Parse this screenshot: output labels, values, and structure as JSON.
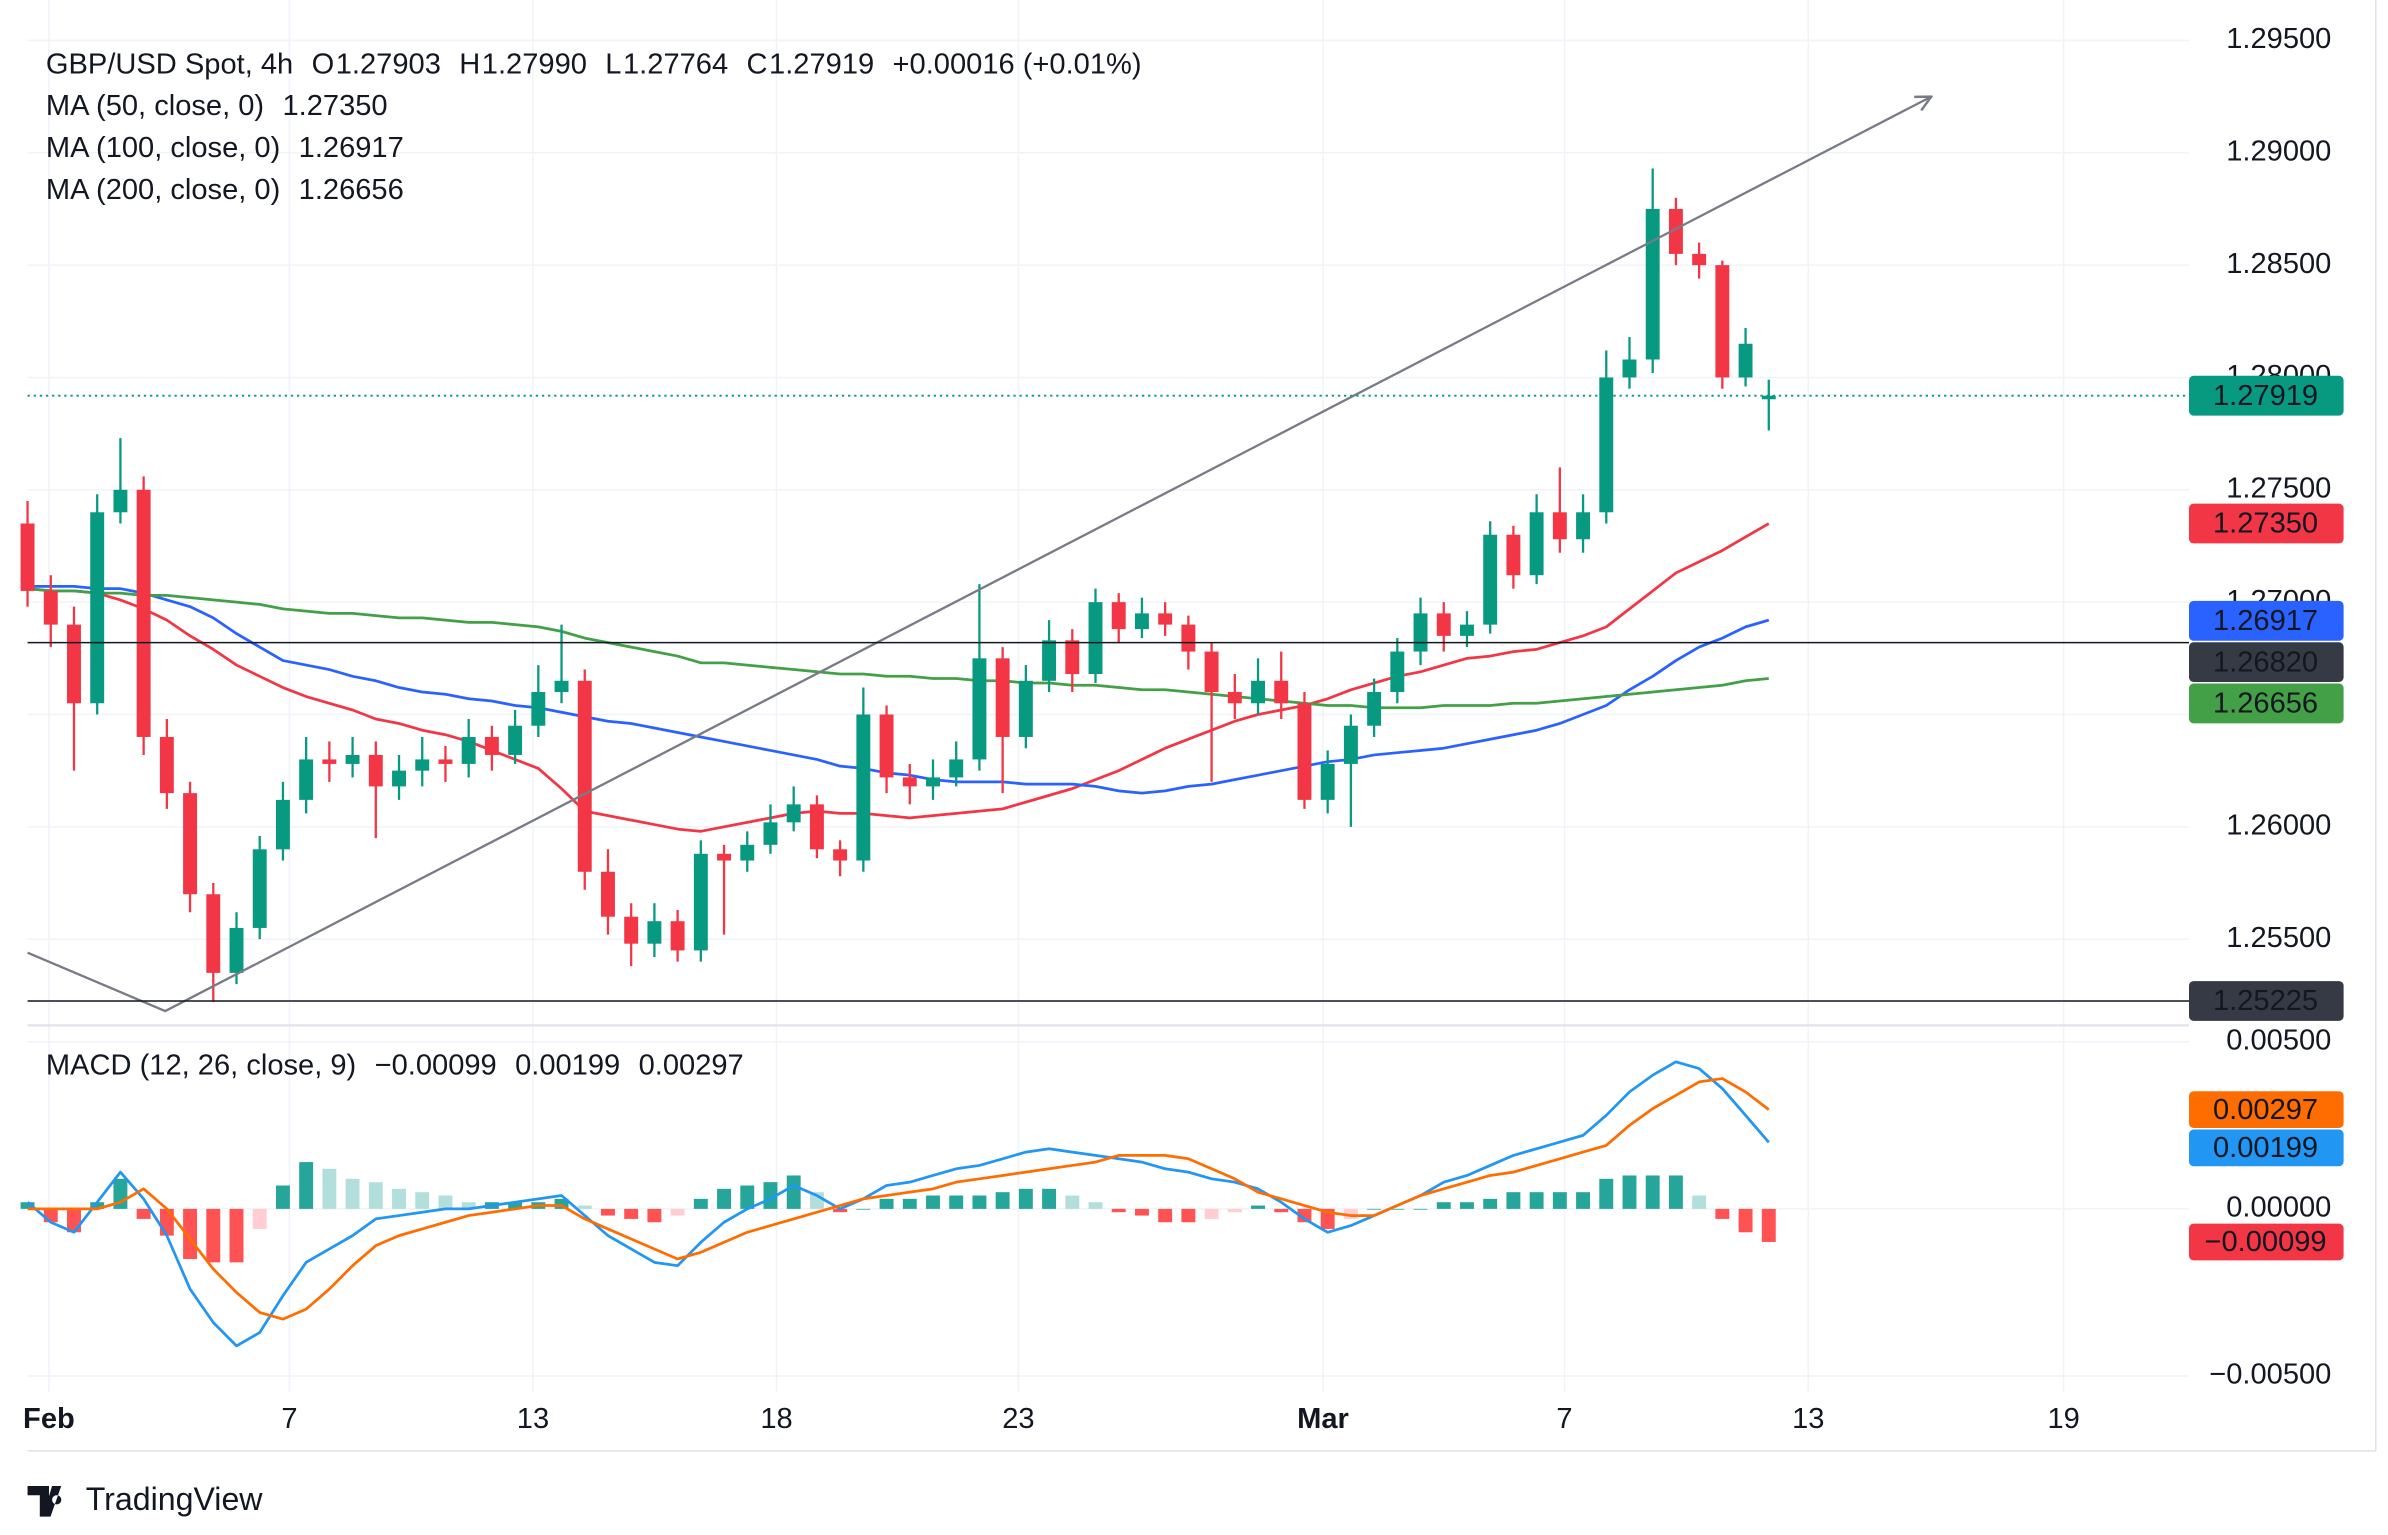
{
  "header": {
    "title": "GBP/USD Spot, 4h",
    "color": "#089981",
    "ohlc": [
      {
        "key": "O",
        "value": "1.27903"
      },
      {
        "key": "H",
        "value": "1.27990"
      },
      {
        "key": "L",
        "value": "1.27764"
      },
      {
        "key": "C",
        "value": "1.27919"
      }
    ],
    "change": "+0.00016 (+0.01%)"
  },
  "brand": "TradingView",
  "chart_data": [
    {
      "type": "candlestick",
      "up_color": "#089981",
      "down_color": "#f23645",
      "grid": true,
      "open": [
        1.2735,
        1.2705,
        1.269,
        1.2655,
        1.274,
        1.275,
        1.264,
        1.2615,
        1.257,
        1.2535,
        1.2555,
        1.259,
        1.2612,
        1.263,
        1.2628,
        1.2632,
        1.2618,
        1.2625,
        1.263,
        1.2628,
        1.264,
        1.2632,
        1.2645,
        1.266,
        1.2665,
        1.258,
        1.256,
        1.2548,
        1.2558,
        1.2545,
        1.2588,
        1.2585,
        1.2592,
        1.2602,
        1.261,
        1.259,
        1.2585,
        1.265,
        1.2622,
        1.2618,
        1.2622,
        1.263,
        1.2675,
        1.264,
        1.2665,
        1.2683,
        1.2668,
        1.27,
        1.2688,
        1.2695,
        1.269,
        1.2678,
        1.266,
        1.2655,
        1.2665,
        1.2655,
        1.2612,
        1.2628,
        1.2645,
        1.266,
        1.2678,
        1.2695,
        1.2685,
        1.269,
        1.273,
        1.2712,
        1.274,
        1.2728,
        1.274,
        1.28,
        1.2808,
        1.2875,
        1.2855,
        1.285,
        1.28,
        1.27903
      ],
      "high": [
        1.2745,
        1.2712,
        1.2698,
        1.2748,
        1.2773,
        1.2756,
        1.2648,
        1.262,
        1.2575,
        1.2562,
        1.2596,
        1.262,
        1.264,
        1.2638,
        1.264,
        1.2638,
        1.2632,
        1.264,
        1.2636,
        1.2648,
        1.2645,
        1.2652,
        1.2672,
        1.269,
        1.267,
        1.259,
        1.2566,
        1.2566,
        1.2563,
        1.2594,
        1.2592,
        1.2598,
        1.261,
        1.2618,
        1.2614,
        1.2594,
        1.2662,
        1.2654,
        1.2628,
        1.263,
        1.2638,
        1.2708,
        1.268,
        1.2672,
        1.2692,
        1.2688,
        1.2706,
        1.2704,
        1.2702,
        1.27,
        1.2694,
        1.2682,
        1.2668,
        1.2675,
        1.2678,
        1.266,
        1.2634,
        1.265,
        1.2666,
        1.2684,
        1.2702,
        1.27,
        1.2696,
        1.2736,
        1.2734,
        1.2748,
        1.276,
        1.2748,
        1.2812,
        1.2818,
        1.2893,
        1.288,
        1.286,
        1.2852,
        1.2822,
        1.2799
      ],
      "low": [
        1.2698,
        1.268,
        1.2625,
        1.265,
        1.2735,
        1.2632,
        1.2608,
        1.2562,
        1.2522,
        1.253,
        1.255,
        1.2585,
        1.2606,
        1.262,
        1.2622,
        1.2595,
        1.2612,
        1.2618,
        1.262,
        1.2622,
        1.2625,
        1.2628,
        1.264,
        1.2655,
        1.2572,
        1.2552,
        1.2538,
        1.2542,
        1.254,
        1.254,
        1.2552,
        1.258,
        1.2588,
        1.2598,
        1.2586,
        1.2578,
        1.258,
        1.2615,
        1.261,
        1.2612,
        1.2618,
        1.2625,
        1.2615,
        1.2635,
        1.266,
        1.266,
        1.2664,
        1.2682,
        1.2684,
        1.2685,
        1.267,
        1.262,
        1.2648,
        1.265,
        1.2648,
        1.2608,
        1.2606,
        1.26,
        1.264,
        1.2655,
        1.2672,
        1.2678,
        1.268,
        1.2686,
        1.2706,
        1.2708,
        1.2722,
        1.2722,
        1.2735,
        1.2795,
        1.2802,
        1.285,
        1.2844,
        1.2795,
        1.2796,
        1.27764
      ],
      "close": [
        1.2705,
        1.269,
        1.2655,
        1.274,
        1.275,
        1.264,
        1.2615,
        1.257,
        1.2535,
        1.2555,
        1.259,
        1.2612,
        1.263,
        1.2628,
        1.2632,
        1.2618,
        1.2625,
        1.263,
        1.2628,
        1.264,
        1.2632,
        1.2645,
        1.266,
        1.2665,
        1.258,
        1.256,
        1.2548,
        1.2558,
        1.2545,
        1.2588,
        1.2585,
        1.2592,
        1.2602,
        1.261,
        1.259,
        1.2585,
        1.265,
        1.2622,
        1.2618,
        1.2622,
        1.263,
        1.2675,
        1.264,
        1.2665,
        1.2683,
        1.2668,
        1.27,
        1.2688,
        1.2695,
        1.269,
        1.2678,
        1.266,
        1.2655,
        1.2665,
        1.2655,
        1.2612,
        1.2628,
        1.2645,
        1.266,
        1.2678,
        1.2695,
        1.2685,
        1.269,
        1.273,
        1.2712,
        1.274,
        1.2728,
        1.274,
        1.28,
        1.2808,
        1.2875,
        1.2855,
        1.285,
        1.28,
        1.2815,
        1.27919
      ],
      "series": [
        {
          "name": "MA (50, close, 0)",
          "value_label": "1.27350",
          "color": "#f23645",
          "values": [
            1.2706,
            1.2705,
            1.2705,
            1.2704,
            1.2701,
            1.2697,
            1.2692,
            1.2685,
            1.2679,
            1.2672,
            1.2667,
            1.2662,
            1.2658,
            1.2655,
            1.2652,
            1.2648,
            1.2646,
            1.2643,
            1.2641,
            1.2638,
            1.2634,
            1.263,
            1.2626,
            1.2617,
            1.2607,
            1.2605,
            1.2603,
            1.2601,
            1.2599,
            1.2598,
            1.26,
            1.2602,
            1.2604,
            1.2606,
            1.2607,
            1.2606,
            1.2606,
            1.2605,
            1.2604,
            1.2605,
            1.2606,
            1.2607,
            1.2608,
            1.2611,
            1.2614,
            1.2617,
            1.2621,
            1.2625,
            1.263,
            1.2635,
            1.2639,
            1.2643,
            1.2647,
            1.265,
            1.2652,
            1.2654,
            1.2657,
            1.2661,
            1.2664,
            1.2667,
            1.2669,
            1.2672,
            1.2675,
            1.2676,
            1.2678,
            1.2679,
            1.2682,
            1.2685,
            1.2689,
            1.2697,
            1.2705,
            1.2713,
            1.2718,
            1.2723,
            1.2729,
            1.2735
          ]
        },
        {
          "name": "MA (100, close, 0)",
          "value_label": "1.26917",
          "color": "#2962ff",
          "values": [
            1.2707,
            1.2707,
            1.2707,
            1.2706,
            1.2706,
            1.2704,
            1.2701,
            1.2698,
            1.2693,
            1.2686,
            1.268,
            1.2674,
            1.2672,
            1.267,
            1.2667,
            1.2665,
            1.2662,
            1.266,
            1.2659,
            1.2657,
            1.2656,
            1.2654,
            1.2653,
            1.2651,
            1.2649,
            1.2647,
            1.2646,
            1.2644,
            1.2642,
            1.264,
            1.2638,
            1.2636,
            1.2634,
            1.2632,
            1.263,
            1.2627,
            1.2626,
            1.2624,
            1.2623,
            1.2621,
            1.262,
            1.262,
            1.262,
            1.2619,
            1.2619,
            1.2619,
            1.2618,
            1.2616,
            1.2615,
            1.2616,
            1.2618,
            1.2619,
            1.2621,
            1.2623,
            1.2625,
            1.2627,
            1.2629,
            1.263,
            1.2632,
            1.2633,
            1.2634,
            1.2635,
            1.2637,
            1.2639,
            1.2641,
            1.2643,
            1.2646,
            1.265,
            1.2654,
            1.2661,
            1.2667,
            1.2674,
            1.268,
            1.2684,
            1.2689,
            1.2692
          ]
        },
        {
          "name": "MA (200, close, 0)",
          "value_label": "1.26656",
          "color": "#43a047",
          "values": [
            1.2706,
            1.2705,
            1.2705,
            1.2704,
            1.2704,
            1.2703,
            1.2703,
            1.2702,
            1.2701,
            1.27,
            1.2699,
            1.2697,
            1.2696,
            1.2695,
            1.2695,
            1.2694,
            1.2693,
            1.2693,
            1.2692,
            1.2691,
            1.2691,
            1.269,
            1.2689,
            1.2687,
            1.2684,
            1.2682,
            1.268,
            1.2678,
            1.2676,
            1.2673,
            1.2673,
            1.2672,
            1.2671,
            1.267,
            1.2669,
            1.2668,
            1.2668,
            1.2667,
            1.2667,
            1.2666,
            1.2666,
            1.2665,
            1.2665,
            1.2664,
            1.2664,
            1.2663,
            1.2663,
            1.2662,
            1.2661,
            1.2661,
            1.266,
            1.2659,
            1.2658,
            1.2657,
            1.2656,
            1.2655,
            1.2654,
            1.2654,
            1.2653,
            1.2653,
            1.2653,
            1.2654,
            1.2654,
            1.2654,
            1.2655,
            1.2655,
            1.2656,
            1.2657,
            1.2658,
            1.2659,
            1.266,
            1.2661,
            1.2662,
            1.2663,
            1.2665,
            1.2666
          ]
        }
      ],
      "xlim": [
        0,
        93.1
      ],
      "xticks": [
        {
          "value": 0.92,
          "label": "Feb"
        },
        {
          "value": 11.28,
          "label": "7"
        },
        {
          "value": 21.77,
          "label": "13"
        },
        {
          "value": 32.26,
          "label": "18"
        },
        {
          "value": 42.68,
          "label": "23"
        },
        {
          "value": 55.8,
          "label": "Mar"
        },
        {
          "value": 66.2,
          "label": "7"
        },
        {
          "value": 76.7,
          "label": "13"
        },
        {
          "value": 87.7,
          "label": "19"
        }
      ],
      "ylim": [
        1.2513,
        1.2968
      ],
      "yticks": [
        {
          "value": 1.255,
          "label": "1.25500"
        },
        {
          "value": 1.26,
          "label": "1.26000"
        },
        {
          "value": 1.265,
          "label": "1.26500"
        },
        {
          "value": 1.27,
          "label": "1.27000"
        },
        {
          "value": 1.275,
          "label": "1.27500"
        },
        {
          "value": 1.28,
          "label": "1.28000"
        },
        {
          "value": 1.285,
          "label": "1.28500"
        },
        {
          "value": 1.29,
          "label": "1.29000"
        },
        {
          "value": 1.295,
          "label": "1.29500"
        }
      ],
      "trendline": {
        "color": "#787b86",
        "x": [
          0,
          5.93,
          82.0
        ],
        "y": [
          1.2544,
          1.2518,
          1.2925
        ]
      },
      "price_tags": [
        {
          "value": 1.27919,
          "label": "1.27919",
          "color": "#089981",
          "line": "dotted"
        },
        {
          "value": 1.2735,
          "label": "1.27350",
          "color": "#f23645"
        },
        {
          "value": 1.26917,
          "label": "1.26917",
          "color": "#2962ff"
        },
        {
          "value": 1.2682,
          "label": "1.26820",
          "color": "#363a45",
          "line": "solid"
        },
        {
          "value": 1.26656,
          "label": "1.26656",
          "color": "#43a047"
        },
        {
          "value": 1.25225,
          "label": "1.25225",
          "color": "#363a45",
          "line": "solid"
        }
      ]
    },
    {
      "type": "macd",
      "name": "MACD (12, 26, close, 9)",
      "grid": true,
      "histogram": {
        "value_label": "−0.00099",
        "label_color": "#f23645",
        "colors": [
          "#26a69a",
          "#b2dfdb",
          "#ff5252",
          "#ffcdd2"
        ],
        "values": [
          0.0002,
          -0.0004,
          -0.0007,
          0.0002,
          0.0009,
          -0.0003,
          -0.0008,
          -0.0015,
          -0.0016,
          -0.0016,
          -0.0006,
          0.0007,
          0.0014,
          0.0012,
          0.0009,
          0.0008,
          0.0006,
          0.0005,
          0.0004,
          0.0002,
          0.0002,
          0.0002,
          0.0002,
          0.0003,
          0.0001,
          -0.0002,
          -0.0003,
          -0.0004,
          -0.0002,
          0.0003,
          0.0006,
          0.0007,
          0.0008,
          0.001,
          0.0005,
          -0.0001,
          0.0,
          0.0003,
          0.0003,
          0.0004,
          0.0004,
          0.0004,
          0.0005,
          0.0006,
          0.0006,
          0.0004,
          0.0002,
          -0.0001,
          -0.0002,
          -0.0004,
          -0.0004,
          -0.0003,
          -0.0001,
          0.0001,
          -0.0001,
          -0.0004,
          -0.0006,
          -0.0003,
          0.0,
          0.0,
          0.0,
          0.0002,
          0.0002,
          0.0003,
          0.0005,
          0.0005,
          0.0005,
          0.0005,
          0.0009,
          0.001,
          0.001,
          0.001,
          0.0004,
          -0.0003,
          -0.0007,
          -0.00099
        ]
      },
      "series": [
        {
          "value_label": "0.00199",
          "color": "#2196f3",
          "values": [
            0.0002,
            -0.0004,
            -0.0007,
            0.0002,
            0.0011,
            0.0003,
            -0.0008,
            -0.0024,
            -0.0034,
            -0.0041,
            -0.0037,
            -0.0026,
            -0.0016,
            -0.0012,
            -0.0008,
            -0.0003,
            -0.0002,
            -0.0001,
            0.0,
            0.0,
            0.0001,
            0.0002,
            0.0003,
            0.0004,
            -0.0002,
            -0.0008,
            -0.0012,
            -0.0016,
            -0.0017,
            -0.001,
            -0.0004,
            0.0,
            0.0003,
            0.0007,
            0.0004,
            0.0,
            0.0003,
            0.0007,
            0.0008,
            0.001,
            0.0012,
            0.0013,
            0.0015,
            0.0017,
            0.0018,
            0.0017,
            0.0016,
            0.0015,
            0.0014,
            0.0012,
            0.0011,
            0.0009,
            0.0008,
            0.0006,
            0.0002,
            -0.0003,
            -0.0007,
            -0.0005,
            -0.0002,
            0.0001,
            0.0004,
            0.0008,
            0.001,
            0.0013,
            0.0016,
            0.0018,
            0.002,
            0.0022,
            0.0028,
            0.0035,
            0.004,
            0.0044,
            0.0042,
            0.0036,
            0.0028,
            0.00199
          ]
        },
        {
          "value_label": "0.00297",
          "color": "#ff6d00",
          "values": [
            0.0,
            0.0,
            0.0,
            0.0,
            0.0002,
            0.0006,
            0.0,
            -0.0009,
            -0.0018,
            -0.0025,
            -0.0031,
            -0.0033,
            -0.003,
            -0.0024,
            -0.0017,
            -0.0011,
            -0.0008,
            -0.0006,
            -0.0004,
            -0.0002,
            -0.0001,
            0.0,
            0.0001,
            0.0001,
            -0.0003,
            -0.0006,
            -0.0009,
            -0.0012,
            -0.0015,
            -0.0013,
            -0.001,
            -0.0007,
            -0.0005,
            -0.0003,
            -0.0001,
            0.0001,
            0.0003,
            0.0004,
            0.0005,
            0.0006,
            0.0008,
            0.0009,
            0.001,
            0.0011,
            0.0012,
            0.0013,
            0.0014,
            0.0016,
            0.0016,
            0.0016,
            0.0015,
            0.0012,
            0.0009,
            0.0005,
            0.0003,
            0.0001,
            -0.0001,
            -0.0002,
            -0.0002,
            0.0001,
            0.0004,
            0.0006,
            0.0008,
            0.001,
            0.0011,
            0.0013,
            0.0015,
            0.0017,
            0.0019,
            0.0025,
            0.003,
            0.0034,
            0.0038,
            0.0039,
            0.0035,
            0.00297
          ]
        }
      ],
      "ylim": [
        -0.0055,
        0.0054
      ],
      "yticks": [
        {
          "value": -0.005,
          "label": "−0.00500"
        },
        {
          "value": 0,
          "label": "0.00000"
        },
        {
          "value": 0.005,
          "label": "0.00500"
        }
      ],
      "price_tags": [
        {
          "value": 0.00297,
          "label": "0.00297",
          "color": "#ff6d00"
        },
        {
          "value": 0.00199,
          "label": "0.00199",
          "color": "#2196f3"
        },
        {
          "value": -0.00099,
          "label": "−0.00099",
          "color": "#f23645"
        }
      ]
    }
  ]
}
